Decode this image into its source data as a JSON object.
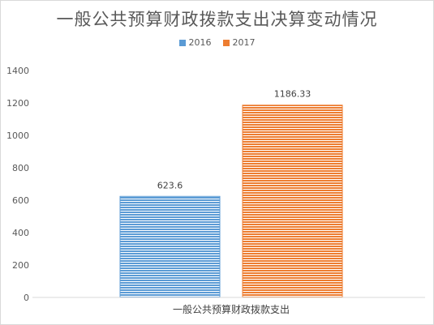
{
  "chart_data": {
    "type": "bar",
    "title": "一般公共预算财政拨款支出决算变动情况",
    "categories": [
      "一般公共预算财政拨款支出"
    ],
    "series": [
      {
        "name": "2016",
        "values": [
          623.6
        ],
        "color": "#5b9bd5"
      },
      {
        "name": "2017",
        "values": [
          1186.33
        ],
        "color": "#ed7d31"
      }
    ],
    "data_labels": [
      "623.6",
      "1186.33"
    ],
    "ylim": [
      0,
      1400
    ],
    "yticks": [
      0,
      200,
      400,
      600,
      800,
      1000,
      1200,
      1400
    ],
    "grid": false,
    "legend_position": "top-center",
    "xlabel": "",
    "ylabel": ""
  }
}
